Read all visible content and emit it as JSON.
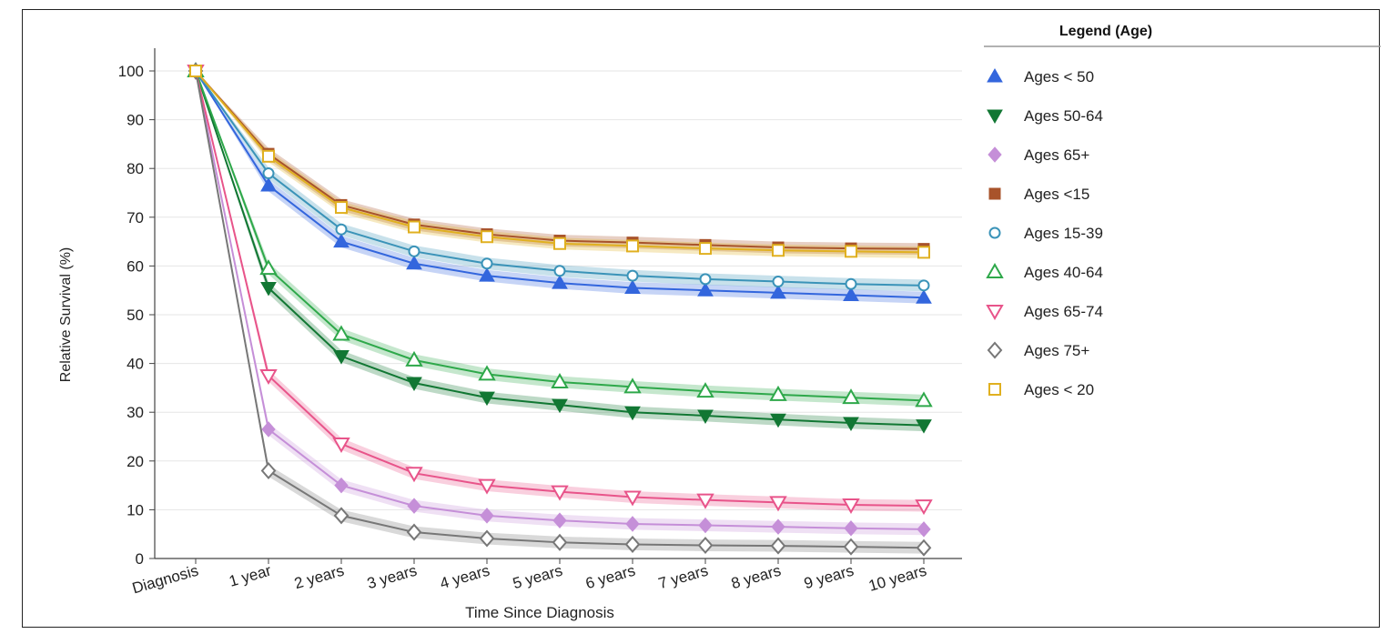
{
  "chart_data": {
    "type": "line",
    "title": "",
    "xlabel": "Time Since Diagnosis",
    "ylabel": "Relative Survival (%)",
    "ylim": [
      0,
      100
    ],
    "yticks": [
      0,
      10,
      20,
      30,
      40,
      50,
      60,
      70,
      80,
      90,
      100
    ],
    "grid": true,
    "legend_placement": "right",
    "legend_title": "Legend (Age)",
    "categories": [
      "Diagnosis",
      "1 year",
      "2 years",
      "3 years",
      "4 years",
      "5 years",
      "6 years",
      "7 years",
      "8 years",
      "9 years",
      "10 years"
    ],
    "series": [
      {
        "name": "Ages < 50",
        "color": "#3366dd",
        "marker": "triangle-up",
        "filled": true,
        "values": [
          100,
          76.5,
          65,
          60.5,
          58,
          56.5,
          55.5,
          55,
          54.5,
          54,
          53.5
        ]
      },
      {
        "name": "Ages 50-64",
        "color": "#117733",
        "marker": "triangle-down",
        "filled": true,
        "values": [
          100,
          55.5,
          41.5,
          36,
          33,
          31.5,
          30,
          29.3,
          28.5,
          27.8,
          27.3
        ]
      },
      {
        "name": "Ages 65+",
        "color": "#c58fd8",
        "marker": "diamond",
        "filled": true,
        "values": [
          100,
          26.5,
          15,
          10.8,
          8.8,
          7.8,
          7.1,
          6.8,
          6.5,
          6.2,
          6
        ]
      },
      {
        "name": "Ages <15",
        "color": "#a8532b",
        "marker": "square",
        "filled": true,
        "values": [
          100,
          83,
          72.5,
          68.5,
          66.5,
          65.2,
          64.8,
          64.3,
          63.8,
          63.6,
          63.5
        ]
      },
      {
        "name": "Ages 15-39",
        "color": "#3a93b8",
        "marker": "circle",
        "filled": false,
        "values": [
          100,
          79,
          67.5,
          63,
          60.5,
          59,
          58,
          57.3,
          56.8,
          56.3,
          56
        ]
      },
      {
        "name": "Ages 40-64",
        "color": "#2ea84a",
        "marker": "triangle-up",
        "filled": false,
        "values": [
          100,
          59.5,
          46,
          40.7,
          37.8,
          36.2,
          35.2,
          34.3,
          33.6,
          33,
          32.4
        ]
      },
      {
        "name": "Ages 65-74",
        "color": "#e8548a",
        "marker": "triangle-down",
        "filled": false,
        "values": [
          100,
          37.5,
          23.5,
          17.5,
          15,
          13.7,
          12.6,
          12,
          11.5,
          11,
          10.8
        ]
      },
      {
        "name": "Ages 75+",
        "color": "#777777",
        "marker": "diamond",
        "filled": false,
        "values": [
          100,
          18,
          8.8,
          5.4,
          4.1,
          3.3,
          2.9,
          2.7,
          2.6,
          2.4,
          2.2
        ]
      },
      {
        "name": "Ages < 20",
        "color": "#e0b020",
        "marker": "square",
        "filled": false,
        "values": [
          100,
          82.5,
          72,
          68,
          66,
          64.6,
          64.1,
          63.6,
          63.2,
          63,
          62.8
        ]
      }
    ]
  }
}
